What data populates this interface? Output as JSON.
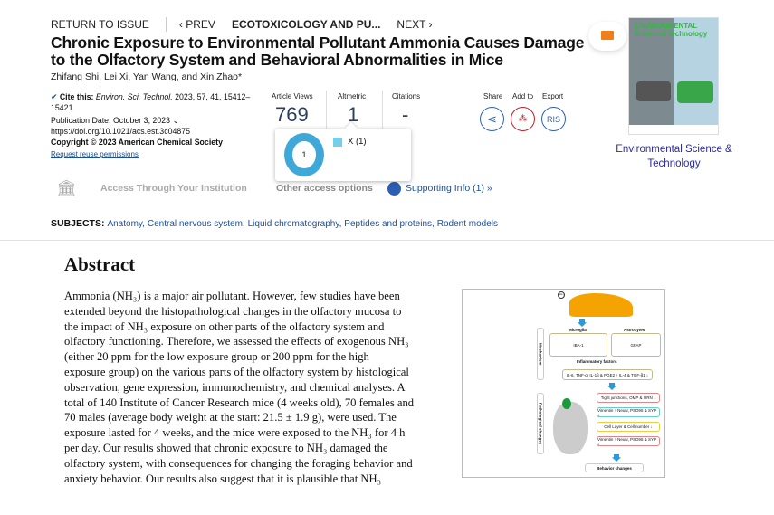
{
  "nav": {
    "return": "RETURN TO ISSUE",
    "prev": "‹ PREV",
    "section": "ECOTOXICOLOGY AND PU...",
    "next": "NEXT ›"
  },
  "article": {
    "title": "Chronic Exposure to Environmental Pollutant Ammonia Causes Damage to the Olfactory System and Behavioral Abnormalities in Mice",
    "authors": "Zhifang Shi, Lei Xi, Yan Wang, and Xin Zhao*",
    "cite_label": "Cite this:",
    "cite_journal": "Environ. Sci. Technol.",
    "cite_rest": "2023, 57, 41, 15412–",
    "cite_rest2": "15421",
    "pub_date": "Publication Date: October 3, 2023",
    "doi": "https://doi.org/10.1021/acs.est.3c04875",
    "copyright": "Copyright © 2023 American Chemical Society",
    "reuse": "Request reuse permissions"
  },
  "metrics": {
    "views_label": "Article Views",
    "views": "769",
    "altmetric_label": "Altmetric",
    "altmetric": "1",
    "citations_label": "Citations",
    "citations": "-"
  },
  "altmetric_popup": {
    "score": "1",
    "source": "X (1)",
    "source_color": "#74cfe8"
  },
  "actions": {
    "share": "Share",
    "add": "Add to",
    "export": "Export",
    "ris": "RIS"
  },
  "access": {
    "institution": "Access Through Your Institution",
    "other": "Other access options",
    "supporting": "Supporting Info (1) »"
  },
  "subjects": {
    "label": "SUBJECTS:",
    "items": [
      "Anatomy,",
      "Central nervous system,",
      "Liquid chromatography,",
      "Peptides and proteins,",
      "Rodent models"
    ]
  },
  "abstract": {
    "heading": "Abstract",
    "lines": [
      "Ammonia (NH₃) is a major air pollutant. However, few studies have been",
      "extended beyond the histopathological changes in the olfactory mucosa to",
      "the impact of NH₃ exposure on other parts of the olfactory system and",
      "olfactory functioning. Therefore, we assessed the effects of exogenous NH₃",
      "(either 20 ppm for the low exposure group or 200 ppm for the high",
      "exposure group) on the various parts of the olfactory system by histological",
      "observation, gene expression, immunochemistry, and chemical analyses. A",
      "total of 140 Institute of Cancer Research mice (4 weeks old), 70 females and",
      "70 males (average body weight at the start: 21.5 ± 1.9 g), were used. The",
      "exposure lasted for 4 weeks, and the mice were exposed to the NH₃ for 4 h",
      "per day. Our results showed that chronic exposure to NH₃ damaged the",
      "olfactory system, with consequences for changing the foraging behavior and",
      "anxiety behavior. Our results also suggest that it is plausible that NH₃"
    ]
  },
  "figure": {
    "mech": "Mechanism",
    "patho": "Pathological changes",
    "microglia": "Microglia",
    "astro": "Astrocytes",
    "iba": "IBA-1",
    "gfap": "GFAP",
    "activation": "activation",
    "inflam": "Inflammatory factors",
    "cyto": "IL-6, TNF-α, IL-1β & PGE2 ↑   IL-4 & TGF-β1 ↓",
    "oe": "Tight junctions, OMP & ORN ↓",
    "ob": "Vimentin ↑ NeuN, PSD95 & SYP ↓",
    "pc": "Cell Layer & Cell number ↓",
    "hc": "Vimentin ↑ NeuN, PSD95 & SYP ↓",
    "behav": "Behavior changes",
    "nh3": "NH₃"
  },
  "journal": {
    "name": "Environmental Science & Technology",
    "cover_title": "ENVIRONMENTAL Science&Technology"
  },
  "colors": {
    "link": "#1a4fa0",
    "accent_orange": "#f07f1a",
    "mendeley": "#b5202a"
  }
}
